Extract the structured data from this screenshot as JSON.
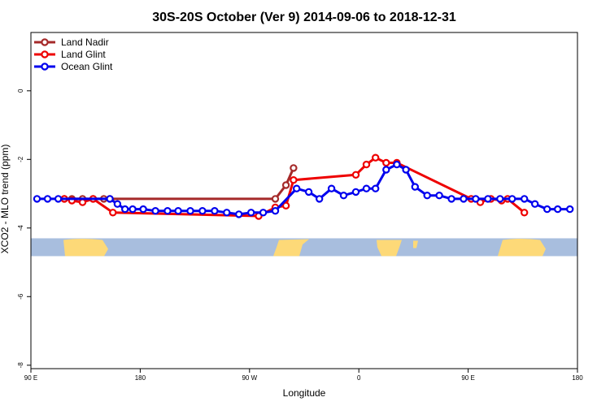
{
  "chart_data": {
    "type": "line",
    "title": "30S-20S October (Ver 9)   2014-09-06 to 2018-12-31",
    "xlabel": "Longitude",
    "ylabel": "XCO2 - MLO trend (ppm)",
    "xlim": [
      90,
      450
    ],
    "ylim": [
      -8.1,
      1.7
    ],
    "x_ticks": [
      {
        "value": 90,
        "label": "90 E"
      },
      {
        "value": 162,
        "label": "180"
      },
      {
        "value": 234,
        "label": "90 W"
      },
      {
        "value": 306,
        "label": "0"
      },
      {
        "value": 378,
        "label": "90 E"
      },
      {
        "value": 450,
        "label": "180"
      }
    ],
    "y_ticks": [
      {
        "value": 0,
        "label": "0"
      },
      {
        "value": -2,
        "label": "-2"
      },
      {
        "value": -4,
        "label": "-4"
      },
      {
        "value": -6,
        "label": "-6"
      },
      {
        "value": -8,
        "label": "-8"
      }
    ],
    "legend_position": "top-left",
    "grid": false,
    "land_strip": {
      "y_top": -4.3,
      "y_bottom": -4.82,
      "ocean_color": "#a8bede",
      "land_color": "#fdd978"
    },
    "series": [
      {
        "name": "Land Nadir",
        "color": "#a52a2a",
        "x": [
          112,
          117,
          124,
          131,
          138,
          142,
          251,
          258,
          263
        ],
        "y": [
          -3.15,
          -3.15,
          -3.15,
          -3.15,
          -3.15,
          -3.15,
          -3.15,
          -2.75,
          -2.25
        ]
      },
      {
        "name": "Land Glint",
        "color": "#ee0000",
        "x": [
          112,
          117,
          124,
          131,
          144,
          240,
          251,
          258,
          263,
          304,
          311,
          317,
          324,
          331,
          380,
          386,
          393,
          400,
          404,
          415
        ],
        "y": [
          -3.15,
          -3.2,
          -3.25,
          -3.15,
          -3.55,
          -3.65,
          -3.4,
          -3.35,
          -2.6,
          -2.45,
          -2.15,
          -1.95,
          -2.1,
          -2.1,
          -3.15,
          -3.25,
          -3.15,
          -3.2,
          -3.15,
          -3.55
        ]
      },
      {
        "name": "Ocean Glint",
        "color": "#0000ee",
        "x": [
          94,
          101,
          108,
          142,
          147,
          152,
          157,
          164,
          172,
          180,
          187,
          195,
          203,
          211,
          219,
          227,
          235,
          243,
          251,
          265,
          273,
          280,
          288,
          296,
          304,
          311,
          317,
          324,
          331,
          337,
          343,
          351,
          359,
          367,
          375,
          383,
          391,
          399,
          407,
          415,
          422,
          430,
          437,
          445
        ],
        "y": [
          -3.15,
          -3.15,
          -3.15,
          -3.15,
          -3.3,
          -3.45,
          -3.45,
          -3.45,
          -3.5,
          -3.5,
          -3.5,
          -3.5,
          -3.5,
          -3.5,
          -3.55,
          -3.6,
          -3.55,
          -3.55,
          -3.5,
          -2.85,
          -2.95,
          -3.15,
          -2.85,
          -3.05,
          -2.95,
          -2.85,
          -2.85,
          -2.3,
          -2.15,
          -2.3,
          -2.8,
          -3.05,
          -3.05,
          -3.15,
          -3.15,
          -3.15,
          -3.15,
          -3.15,
          -3.15,
          -3.15,
          -3.3,
          -3.45,
          -3.45,
          -3.45
        ]
      }
    ]
  }
}
